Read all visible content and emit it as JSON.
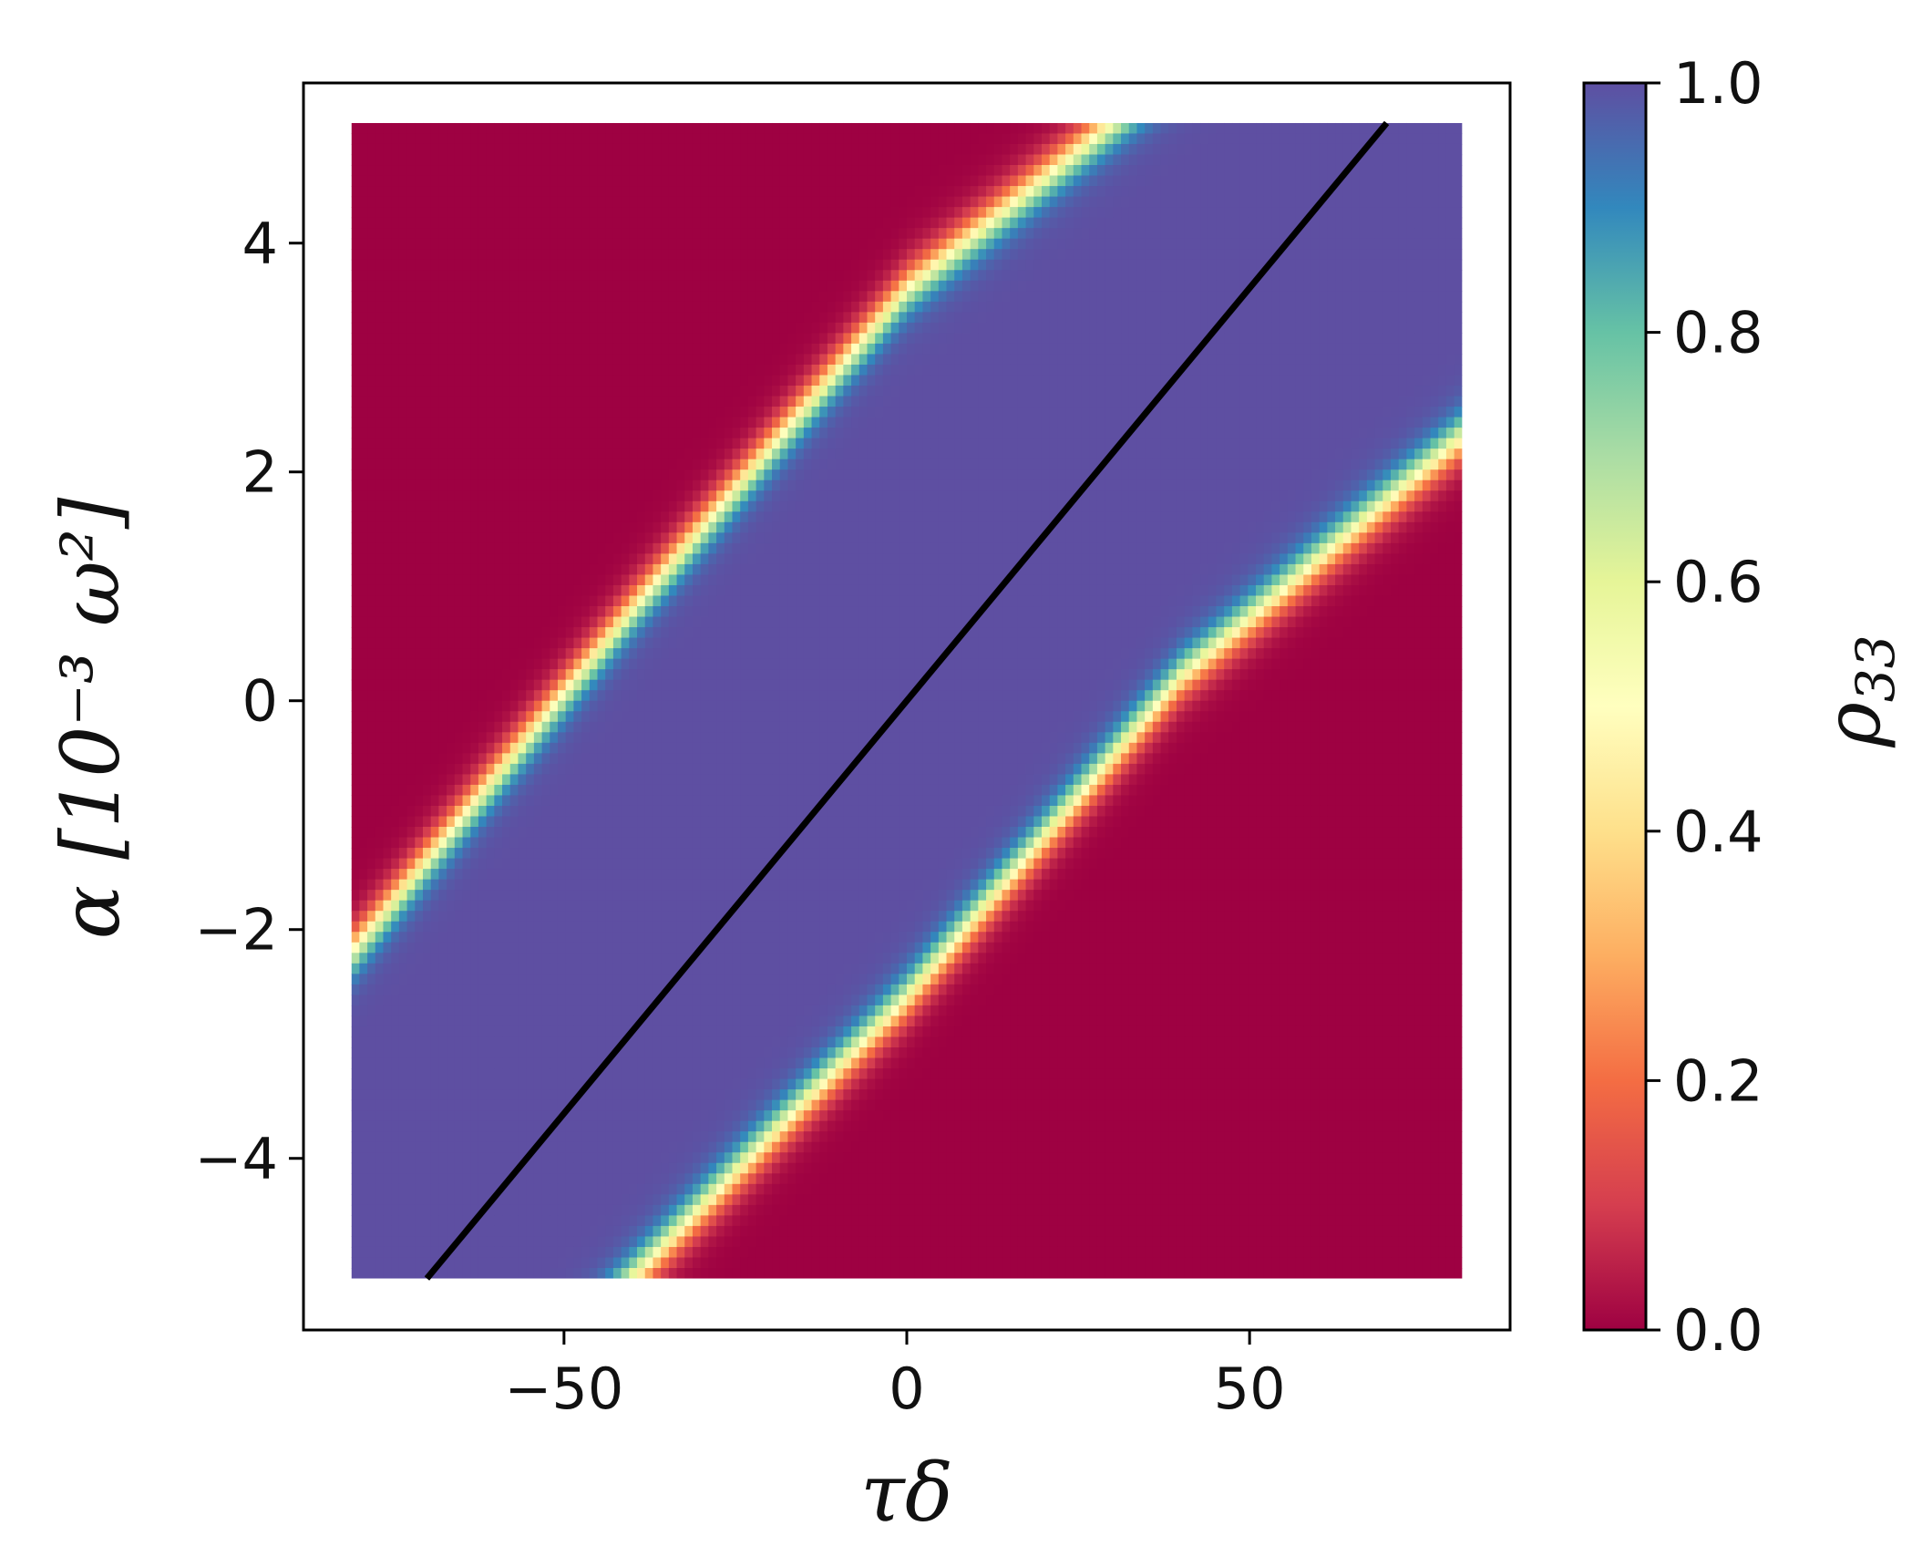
{
  "chart_data": {
    "type": "heatmap",
    "title": "",
    "xlabel": "τδ",
    "ylabel": "α [10⁻³ ω²]",
    "xlim": [
      -88,
      88
    ],
    "ylim": [
      -5.5,
      5.4
    ],
    "data_extent": {
      "x": [
        -81,
        81
      ],
      "y": [
        -5.05,
        5.05
      ]
    },
    "x_ticks": [
      {
        "value": -50,
        "label": "−50"
      },
      {
        "value": 0,
        "label": "0"
      },
      {
        "value": 50,
        "label": "50"
      }
    ],
    "y_ticks": [
      {
        "value": -4,
        "label": "−4"
      },
      {
        "value": -2,
        "label": "−2"
      },
      {
        "value": 0,
        "label": "0"
      },
      {
        "value": 2,
        "label": "2"
      },
      {
        "value": 4,
        "label": "4"
      }
    ],
    "field": {
      "description_of_values": "rho33 vs tau*delta and alpha; value 1 inside diagonal band, 0 outside",
      "band_center_line": {
        "x0": -70,
        "y0": -5.05,
        "x1": 70,
        "y1": 5.05
      },
      "upper_transition_alpha_at_x": [
        [
          -81,
          -2.2
        ],
        [
          -40,
          0.8
        ],
        [
          0,
          3.6
        ],
        [
          30,
          5.05
        ]
      ],
      "lower_transition_alpha_at_x": [
        [
          -40,
          -5.05
        ],
        [
          0,
          -2.6
        ],
        [
          40,
          0.2
        ],
        [
          81,
          2.3
        ]
      ],
      "transition_width_alpha": 0.45
    },
    "line": {
      "name": "",
      "points": [
        [
          -70,
          -5.05
        ],
        [
          70,
          5.05
        ]
      ],
      "color": "#000000"
    },
    "colorbar": {
      "label": "ρ",
      "label_subscript": "33",
      "colormap": "Spectral",
      "range": [
        0,
        1
      ],
      "ticks": [
        "0.0",
        "0.2",
        "0.4",
        "0.6",
        "0.8",
        "1.0"
      ],
      "stops": [
        "#9e0142",
        "#d53e4f",
        "#f46d43",
        "#fdae61",
        "#fee08b",
        "#ffffbf",
        "#e6f598",
        "#abdda4",
        "#66c2a5",
        "#3288bd",
        "#5e4fa2"
      ]
    }
  }
}
